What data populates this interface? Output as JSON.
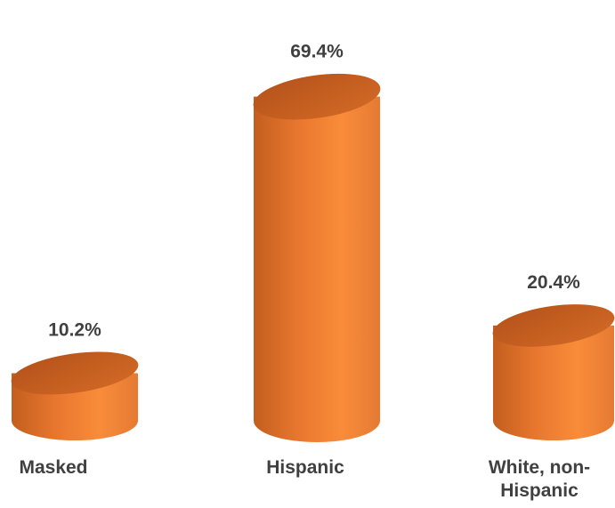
{
  "chart_data": {
    "type": "bar",
    "style": "3d-cylinder",
    "categories": [
      "Masked",
      "Hispanic",
      "White, non-Hispanic"
    ],
    "category_labels": [
      "Masked",
      "Hispanic",
      "White, non-\nHispanic"
    ],
    "values": [
      10.2,
      69.4,
      20.4
    ],
    "data_labels": [
      "10.2%",
      "69.4%",
      "20.4%"
    ],
    "unit": "%",
    "ylim": [
      0,
      80
    ],
    "grid": false,
    "legend": "none",
    "bar_color": "#E8772E",
    "bar_color_light": "#F98C3A",
    "bar_color_dark": "#B9561A",
    "text_color": "#404040"
  }
}
